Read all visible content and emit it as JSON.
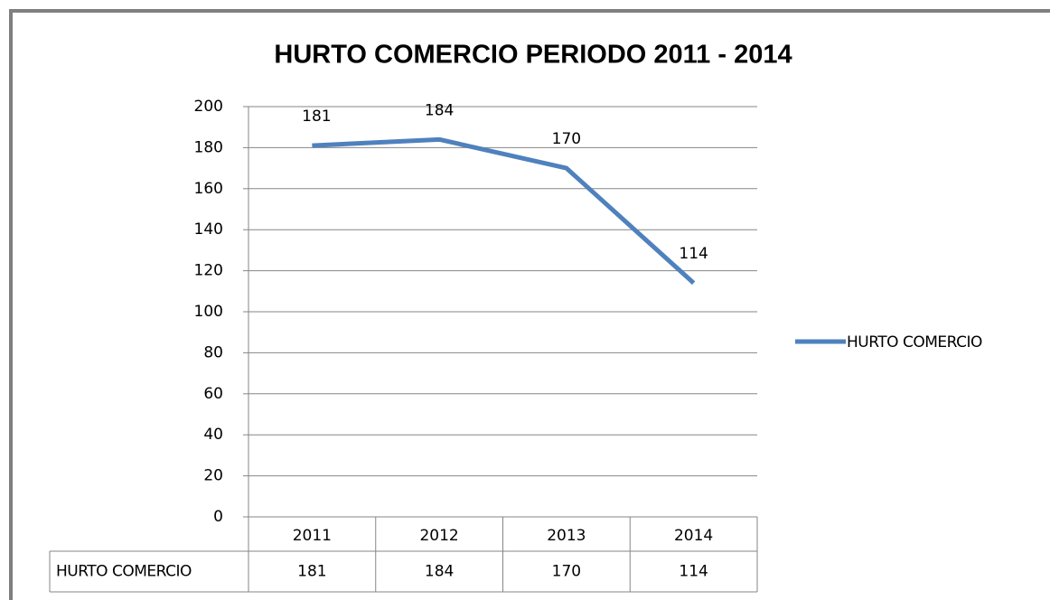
{
  "chart_data": {
    "type": "line",
    "title": "HURTO COMERCIO PERIODO 2011 - 2014",
    "categories": [
      "2011",
      "2012",
      "2013",
      "2014"
    ],
    "series": [
      {
        "name": "HURTO COMERCIO",
        "color": "#4f81bd",
        "values": [
          181,
          184,
          170,
          114
        ]
      }
    ],
    "ylim": [
      0,
      200
    ],
    "yticks": [
      0,
      20,
      40,
      60,
      80,
      100,
      120,
      140,
      160,
      180,
      200
    ],
    "grid": true,
    "legend": "right",
    "data_table": true
  }
}
